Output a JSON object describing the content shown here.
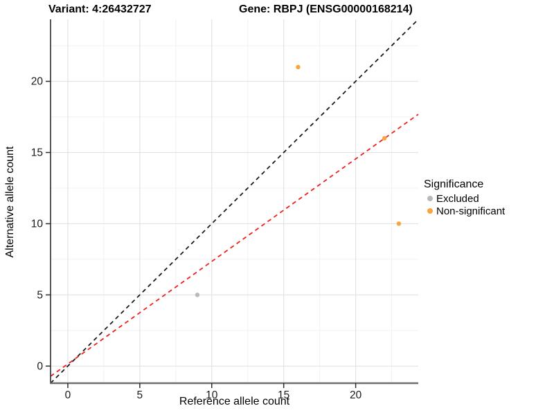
{
  "header": {
    "variant_title": "Variant: 4:26432727",
    "gene_title": "Gene: RBPJ (ENSG00000168214)"
  },
  "legend": {
    "title": "Significance",
    "items": [
      {
        "label": "Excluded",
        "color": "#B9B9B9"
      },
      {
        "label": "Non-significant",
        "color": "#FAA43A"
      }
    ]
  },
  "chart_data": {
    "type": "scatter",
    "title": "Variant: 4:26432727   Gene: RBPJ (ENSG00000168214)",
    "xlabel": "Reference allele count",
    "ylabel": "Alternative allele count",
    "xlim": [
      -1.2,
      24.35
    ],
    "ylim": [
      -1.2,
      24.35
    ],
    "x_ticks": [
      0,
      5,
      10,
      15,
      20
    ],
    "y_ticks": [
      0,
      5,
      10,
      15,
      20
    ],
    "x_minor_ticks": [
      2.5,
      7.5,
      12.5,
      17.5,
      22.5
    ],
    "y_minor_ticks": [
      2.5,
      7.5,
      12.5,
      17.5,
      22.5
    ],
    "grid": true,
    "legend_position": "right",
    "series": [
      {
        "name": "Excluded",
        "color": "#B9B9B9",
        "points": [
          {
            "x": 9,
            "y": 5
          }
        ]
      },
      {
        "name": "Non-significant",
        "color": "#FAA43A",
        "points": [
          {
            "x": 16,
            "y": 21
          },
          {
            "x": 22,
            "y": 16
          },
          {
            "x": 23,
            "y": 10
          }
        ]
      }
    ],
    "lines": [
      {
        "name": "identity-line",
        "style": "dashed",
        "color": "#1A1A1A",
        "slope": 1,
        "intercept": 0
      },
      {
        "name": "fit-line",
        "style": "dashed",
        "color": "#F01E1E",
        "slope": 0.72,
        "intercept": 0.15
      }
    ],
    "style": {
      "grid_major_color": "#E3E3E3",
      "grid_minor_color": "#F1F1F1",
      "axis_line_color": "#6E6E6E",
      "y_axis_line_color": "#2B2B2B",
      "tick_color": "#2B2B2B",
      "tick_label_color": "#1A1A1A",
      "point_radius": 3.2
    }
  }
}
